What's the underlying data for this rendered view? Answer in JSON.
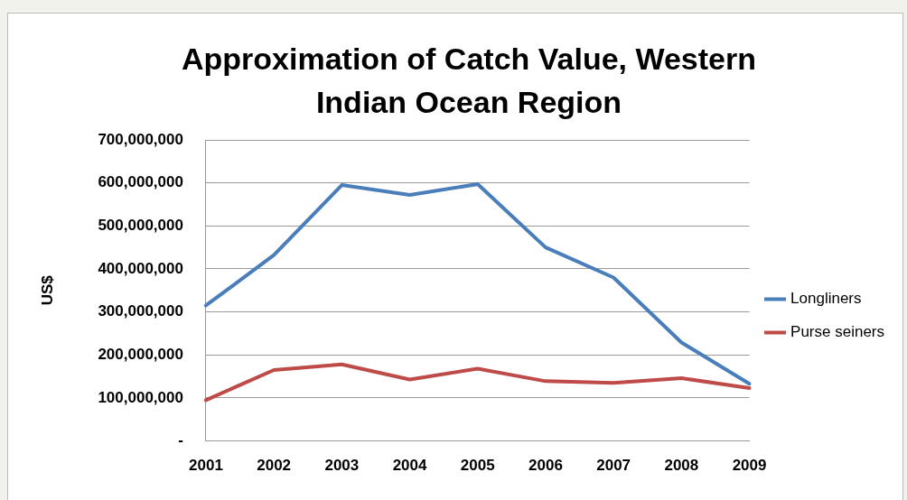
{
  "chart_data": {
    "type": "line",
    "title": "Approximation of Catch Value, Western Indian Ocean Region",
    "ylabel": "US$",
    "categories": [
      "2001",
      "2002",
      "2003",
      "2004",
      "2005",
      "2006",
      "2007",
      "2008",
      "2009"
    ],
    "series": [
      {
        "name": "Longliners",
        "color": "#4a7ebb",
        "values": [
          315000000,
          432000000,
          595000000,
          572000000,
          597000000,
          450000000,
          380000000,
          229000000,
          133000000
        ]
      },
      {
        "name": "Purse seiners",
        "color": "#be4b48",
        "values": [
          95000000,
          165000000,
          178000000,
          143000000,
          168000000,
          139000000,
          135000000,
          146000000,
          123000000
        ]
      }
    ],
    "ylim": [
      0,
      700000000
    ],
    "yticks": [
      {
        "value": 0,
        "label": "-"
      },
      {
        "value": 100000000,
        "label": "100,000,000"
      },
      {
        "value": 200000000,
        "label": "200,000,000"
      },
      {
        "value": 300000000,
        "label": "300,000,000"
      },
      {
        "value": 400000000,
        "label": "400,000,000"
      },
      {
        "value": 500000000,
        "label": "500,000,000"
      },
      {
        "value": 600000000,
        "label": "600,000,000"
      },
      {
        "value": 700000000,
        "label": "700,000,000"
      }
    ],
    "grid": "y",
    "legend": "right",
    "marker": "none",
    "line_style": "solid"
  }
}
